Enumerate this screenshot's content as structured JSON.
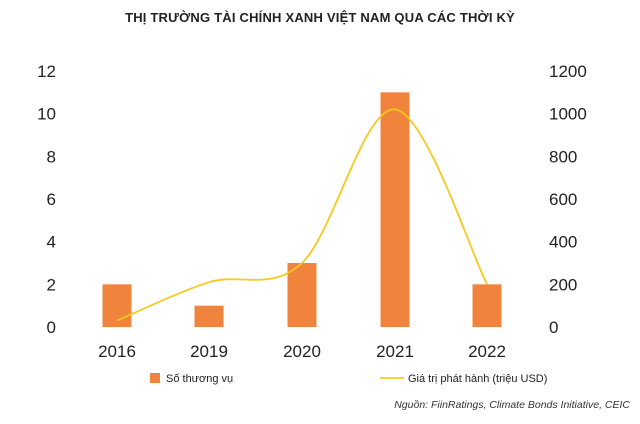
{
  "chart_data": {
    "type": "bar",
    "title": "THỊ TRƯỜNG TÀI CHÍNH XANH VIỆT NAM QUA CÁC THỜI KỲ",
    "categories": [
      "2016",
      "2019",
      "2020",
      "2021",
      "2022"
    ],
    "series": [
      {
        "name": "Số thương vụ",
        "type": "bar",
        "axis": "left",
        "color": "#f0843c",
        "values": [
          2,
          1,
          3,
          11,
          2
        ]
      },
      {
        "name": "Giá trị phát hành (triệu USD)",
        "type": "line",
        "axis": "right",
        "color": "#f7c81e",
        "values": [
          30,
          210,
          300,
          1020,
          200
        ]
      }
    ],
    "y_left": {
      "ylim": [
        0,
        12
      ],
      "ticks": [
        "0",
        "2",
        "4",
        "6",
        "8",
        "10",
        "12"
      ]
    },
    "y_right": {
      "ylim": [
        0,
        1200
      ],
      "ticks": [
        "0",
        "200",
        "400",
        "600",
        "800",
        "1000",
        "1200"
      ]
    },
    "grid": false,
    "legend_position": "bottom"
  },
  "source_note": "Nguồn: FiinRatings, Climate Bonds Initiative, CEIC"
}
